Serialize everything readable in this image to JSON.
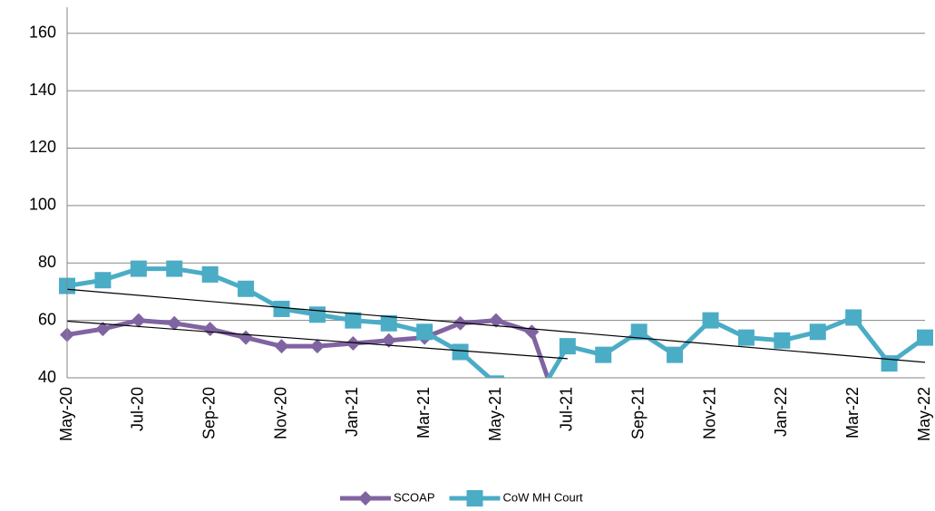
{
  "chart_data": {
    "type": "line",
    "categories": [
      "May-20",
      null,
      "Jul-20",
      null,
      "Sep-20",
      null,
      "Nov-20",
      null,
      "Jan-21",
      null,
      "Mar-21",
      null,
      "May-21",
      null,
      "Jul-21",
      null,
      "Sep-21",
      null,
      "Nov-21",
      null,
      "Jan-22",
      null,
      "Mar-22",
      null,
      "May-22"
    ],
    "series": [
      {
        "name": "SCOAP",
        "color": "#8064a2",
        "marker": "diamond",
        "trendline": true,
        "values": [
          55,
          57,
          60,
          59,
          57,
          54,
          51,
          51,
          52,
          53,
          54,
          59,
          60,
          56,
          20,
          null,
          null,
          null,
          null,
          null,
          null,
          null,
          null,
          null,
          null
        ]
      },
      {
        "name": "CoW MH Court",
        "color": "#4bacc6",
        "marker": "square",
        "trendline": true,
        "values": [
          72,
          74,
          78,
          78,
          76,
          71,
          64,
          62,
          60,
          59,
          56,
          49,
          38,
          30,
          51,
          48,
          56,
          48,
          60,
          54,
          53,
          56,
          61,
          45,
          54
        ]
      }
    ],
    "ylim": [
      40,
      170
    ],
    "yticks": [
      40,
      60,
      80,
      100,
      120,
      140,
      160
    ],
    "grid": true,
    "legend": "bottom"
  }
}
